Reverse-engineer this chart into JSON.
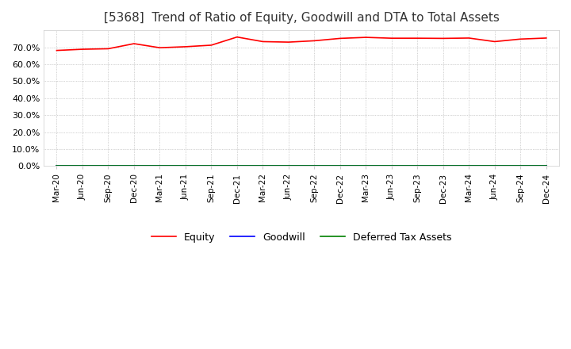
{
  "title": "[5368]  Trend of Ratio of Equity, Goodwill and DTA to Total Assets",
  "x_labels": [
    "Mar-20",
    "Jun-20",
    "Sep-20",
    "Dec-20",
    "Mar-21",
    "Jun-21",
    "Sep-21",
    "Dec-21",
    "Mar-22",
    "Jun-22",
    "Sep-22",
    "Dec-22",
    "Mar-23",
    "Jun-23",
    "Sep-23",
    "Dec-23",
    "Mar-24",
    "Jun-24",
    "Sep-24",
    "Dec-24"
  ],
  "equity": [
    0.681,
    0.688,
    0.691,
    0.721,
    0.697,
    0.703,
    0.712,
    0.76,
    0.733,
    0.73,
    0.738,
    0.752,
    0.758,
    0.753,
    0.753,
    0.752,
    0.754,
    0.733,
    0.748,
    0.754
  ],
  "goodwill": [
    0.0,
    0.0,
    0.0,
    0.0,
    0.0,
    0.0,
    0.0,
    0.0,
    0.0,
    0.0,
    0.0,
    0.0,
    0.0,
    0.0,
    0.0,
    0.0,
    0.0,
    0.0,
    0.0,
    0.0
  ],
  "dta": [
    0.0,
    0.0,
    0.0,
    0.0,
    0.0,
    0.0,
    0.0,
    0.0,
    0.0,
    0.0,
    0.0,
    0.0,
    0.0,
    0.0,
    0.0,
    0.0,
    0.0,
    0.0,
    0.0,
    0.0
  ],
  "equity_color": "#ff0000",
  "goodwill_color": "#0000ff",
  "dta_color": "#008000",
  "ylim": [
    0.0,
    0.8
  ],
  "yticks": [
    0.0,
    0.1,
    0.2,
    0.3,
    0.4,
    0.5,
    0.6,
    0.7
  ],
  "background_color": "#ffffff",
  "grid_color": "#aaaaaa",
  "title_fontsize": 11,
  "legend_labels": [
    "Equity",
    "Goodwill",
    "Deferred Tax Assets"
  ]
}
